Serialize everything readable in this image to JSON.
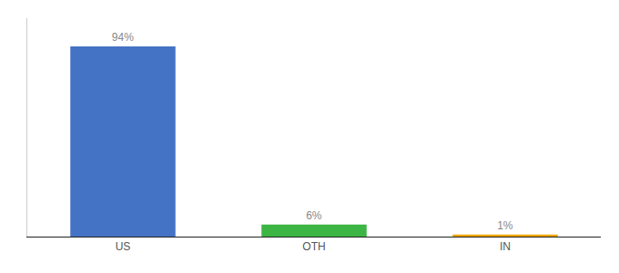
{
  "chart_data": {
    "type": "bar",
    "categories": [
      "US",
      "OTH",
      "IN"
    ],
    "values": [
      94,
      6,
      1
    ],
    "value_labels": [
      "94%",
      "6%",
      "1%"
    ],
    "colors": [
      "#4472c4",
      "#3cb544",
      "#f0a500"
    ],
    "ylim": [
      0,
      108
    ],
    "yticks": [],
    "grid": false,
    "data_labels": true,
    "tick_labels": "x"
  }
}
